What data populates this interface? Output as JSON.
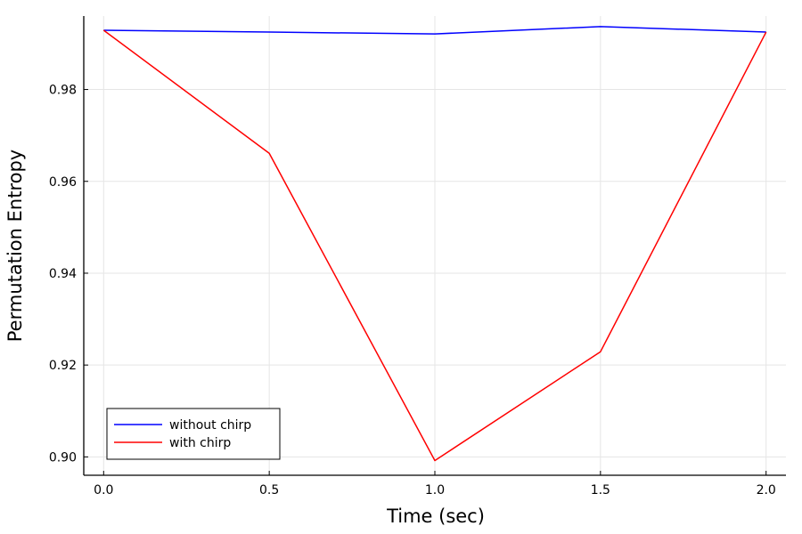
{
  "chart_data": {
    "type": "line",
    "title": "",
    "xlabel": "Time (sec)",
    "ylabel": "Permutation Entropy",
    "xlim": [
      -0.06,
      2.06
    ],
    "ylim": [
      0.896,
      0.996
    ],
    "x_ticks": [
      0.0,
      0.5,
      1.0,
      1.5,
      2.0
    ],
    "x_tick_labels": [
      "0.0",
      "0.5",
      "1.0",
      "1.5",
      "2.0"
    ],
    "y_ticks": [
      0.9,
      0.92,
      0.94,
      0.96,
      0.98
    ],
    "y_tick_labels": [
      "0.90",
      "0.92",
      "0.94",
      "0.96",
      "0.98"
    ],
    "grid": true,
    "legend_position": "bottom-left",
    "x": [
      0.0,
      0.5,
      1.0,
      1.5,
      2.0
    ],
    "series": [
      {
        "name": "without chirp",
        "color": "#0000ff",
        "values": [
          0.9929,
          0.9925,
          0.9921,
          0.9937,
          0.9925
        ]
      },
      {
        "name": "with chirp",
        "color": "#ff0000",
        "values": [
          0.9929,
          0.9661,
          0.8992,
          0.9229,
          0.9925
        ]
      }
    ]
  }
}
